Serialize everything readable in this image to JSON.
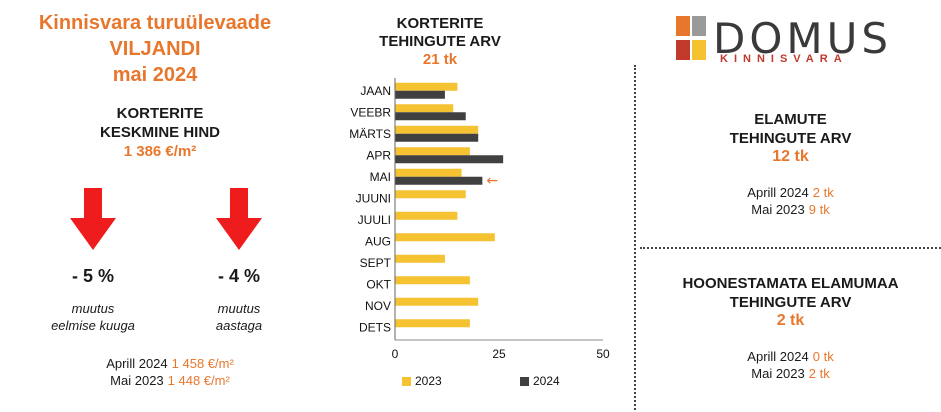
{
  "header": {
    "line1": "Kinnisvara turuülevaade",
    "line2": "VILJANDI",
    "line3": "mai 2024"
  },
  "avg_price": {
    "title1": "KORTERITE",
    "title2": "KESKMINE HIND",
    "value": "1 386 €/m²"
  },
  "changes": [
    {
      "pct": "- 5 %",
      "label1": "muutus",
      "label2": "eelmise kuuga"
    },
    {
      "pct": "- 4 %",
      "label1": "muutus",
      "label2": "aastaga"
    }
  ],
  "price_compare": [
    {
      "label": "Aprill 2024",
      "value": "1 458 €/m²"
    },
    {
      "label": "Mai 2023",
      "value": "1 448 €/m²"
    }
  ],
  "apartments": {
    "title1": "KORTERITE",
    "title2": "TEHINGUTE ARV",
    "value": "21 tk"
  },
  "houses": {
    "title1": "ELAMUTE",
    "title2": "TEHINGUTE ARV",
    "value": "12 tk",
    "compare": [
      {
        "label": "Aprill 2024",
        "value": "2 tk"
      },
      {
        "label": "Mai 2023",
        "value": "9 tk"
      }
    ]
  },
  "land": {
    "title1": "HOONESTAMATA ELAMUMAA",
    "title2": "TEHINGUTE ARV",
    "value": "2 tk",
    "compare": [
      {
        "label": "Aprill 2024",
        "value": "0 tk"
      },
      {
        "label": "Mai 2023",
        "value": "2 tk"
      }
    ]
  },
  "logo": {
    "word": "DOMUS",
    "sub": "KINNISVARA"
  },
  "colors": {
    "accent": "#e8772e",
    "arrow_red": "#ee1c1c",
    "series_2023": "#f5c232",
    "series_2024": "#404040"
  },
  "chart_data": {
    "type": "bar",
    "orientation": "horizontal",
    "categories": [
      "JAAN",
      "VEEBR",
      "MÄRTS",
      "APR",
      "MAI",
      "JUUNI",
      "JUULI",
      "AUG",
      "SEPT",
      "OKT",
      "NOV",
      "DETS"
    ],
    "series": [
      {
        "name": "2023",
        "values": [
          15,
          14,
          20,
          18,
          16,
          17,
          15,
          24,
          12,
          18,
          20,
          18
        ]
      },
      {
        "name": "2024",
        "values": [
          12,
          17,
          20,
          26,
          21,
          null,
          null,
          null,
          null,
          null,
          null,
          null
        ]
      }
    ],
    "xlim": [
      0,
      50
    ],
    "xticks": [
      0,
      25,
      50
    ],
    "grid": false,
    "legend": "bottom",
    "highlight_category": "MAI",
    "highlight_marker": "←"
  }
}
